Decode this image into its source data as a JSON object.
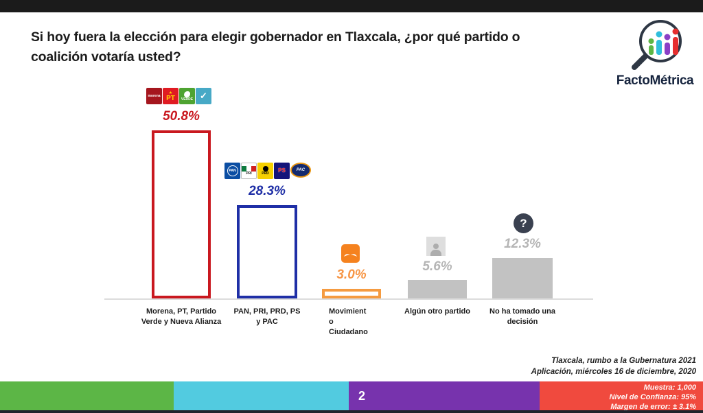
{
  "header": {
    "title": "Si hoy fuera la elección para elegir gobernador en Tlaxcala, ¿por qué partido o coalición votaría usted?"
  },
  "brand": {
    "name": "FactoMétrica"
  },
  "chart_data": {
    "type": "bar",
    "title": "Si hoy fuera la elección para elegir gobernador en Tlaxcala, ¿por qué partido o coalición votaría usted?",
    "categories": [
      "Morena, PT, Partido Verde y Nueva Alianza",
      "PAN, PRI, PRD, PS y PAC",
      "Movimiento Ciudadano",
      "Algún otro partido",
      "No ha tomado una decisión"
    ],
    "values": [
      50.8,
      28.3,
      3.0,
      5.6,
      12.3
    ],
    "ylim": [
      0,
      55
    ],
    "grid": false,
    "legend": false,
    "xlabel": "",
    "ylabel": "",
    "bars": [
      {
        "value_label": "50.8%",
        "style": "outline",
        "color": "#c9181f",
        "label_lines": [
          "Morena, PT, Partido",
          "Verde y Nueva Alianza"
        ],
        "icons": [
          "morena-logo",
          "pt-logo",
          "verde-logo",
          "nueva-alianza-logo"
        ]
      },
      {
        "value_label": "28.3%",
        "style": "outline",
        "color": "#1f2fa6",
        "label_lines": [
          "PAN, PRI, PRD, PS",
          "y  PAC"
        ],
        "icons": [
          "pan-logo",
          "pri-logo",
          "prd-logo",
          "ps-logo",
          "pac-logo"
        ]
      },
      {
        "value_label": "3.0%",
        "style": "outline",
        "color": "#f59b40",
        "label_lines": [
          "Movimient",
          "o",
          "Ciudadano"
        ],
        "icons": [
          "movimiento-ciudadano-logo"
        ]
      },
      {
        "value_label": "5.6%",
        "style": "fill",
        "color": "#c2c2c2",
        "label_lines": [
          "Algún otro partido"
        ],
        "icons": [
          "person-icon"
        ]
      },
      {
        "value_label": "12.3%",
        "style": "fill",
        "color": "#c2c2c2",
        "label_lines": [
          "No ha tomado una",
          "decisión"
        ],
        "icons": [
          "question-icon"
        ]
      }
    ]
  },
  "party_logos": {
    "morena": "morena",
    "pt": "PT",
    "pt_star": "★",
    "verde": "VERDE",
    "alianza": "✓",
    "pan": "PAN",
    "pri": "PRI",
    "prd": "PRD",
    "ps": "PS",
    "pac": "PAC"
  },
  "icons": {
    "question_mark": "?"
  },
  "footer": {
    "line1": "Tlaxcala, rumbo a la Gubernatura 2021",
    "line2": "Aplicación, miércoles 16 de diciembre, 2020"
  },
  "bottom_bar": {
    "page_number": "2",
    "stats": [
      "Muestra:  1,000",
      "Nivel de Confianza: 95%",
      "Margen de error: ± 3.1%"
    ],
    "colors": {
      "green": "#5cb646",
      "cyan": "#52cbe0",
      "purple": "#7733ad",
      "red": "#f04a3e"
    }
  }
}
